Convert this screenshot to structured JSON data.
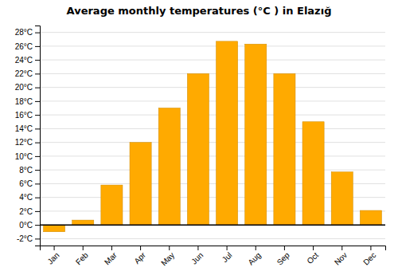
{
  "chart_data": {
    "type": "bar",
    "title": "Average monthly temperatures (°C ) in Elazığ",
    "categories": [
      "Jan",
      "Feb",
      "Mar",
      "Apr",
      "May",
      "Jun",
      "Jul",
      "Aug",
      "Sep",
      "Oct",
      "Nov",
      "Dec"
    ],
    "values": [
      -1.0,
      0.7,
      5.8,
      12.0,
      17.0,
      22.0,
      26.7,
      26.3,
      22.0,
      15.0,
      7.7,
      2.1
    ],
    "color": "#FFAA00",
    "ylim": [
      -3,
      29
    ],
    "yticks": [
      {
        "value": -2,
        "label": "-2°C"
      },
      {
        "value": 0,
        "label": "0°C"
      },
      {
        "value": 2,
        "label": "2°C"
      },
      {
        "value": 4,
        "label": "4°C"
      },
      {
        "value": 6,
        "label": "6°C"
      },
      {
        "value": 8,
        "label": "8°C"
      },
      {
        "value": 10,
        "label": "10°C"
      },
      {
        "value": 12,
        "label": "12°C"
      },
      {
        "value": 14,
        "label": "14°C"
      },
      {
        "value": 16,
        "label": "16°C"
      },
      {
        "value": 18,
        "label": "18°C"
      },
      {
        "value": 20,
        "label": "20°C"
      },
      {
        "value": 22,
        "label": "22°C"
      },
      {
        "value": 24,
        "label": "24°C"
      },
      {
        "value": 26,
        "label": "26°C"
      },
      {
        "value": 28,
        "label": "28°C"
      }
    ],
    "grid": true
  }
}
